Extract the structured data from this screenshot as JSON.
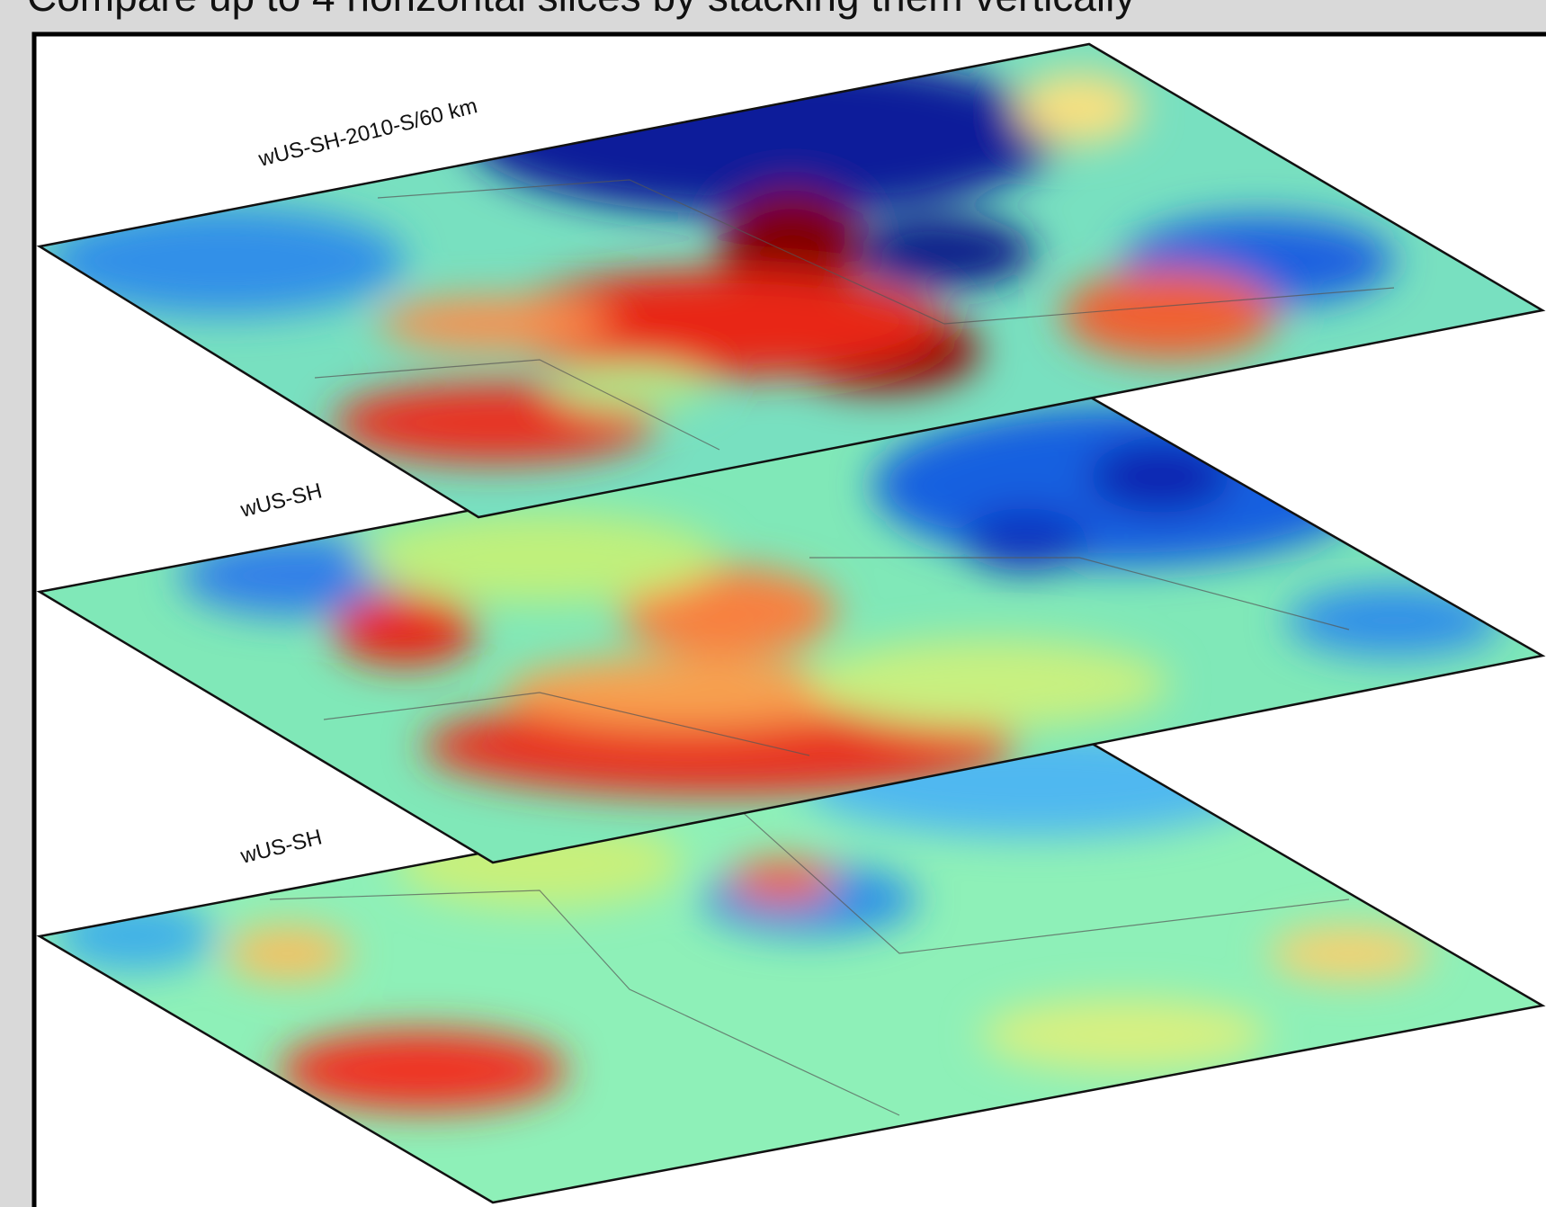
{
  "header": {
    "text": "Compare up to 4 horizontal slices by stacking them vertically"
  },
  "slices": [
    {
      "label": "wUS-SH-2010-S/60 km"
    },
    {
      "label": "wUS-SH"
    },
    {
      "label": "wUS-SH"
    }
  ]
}
